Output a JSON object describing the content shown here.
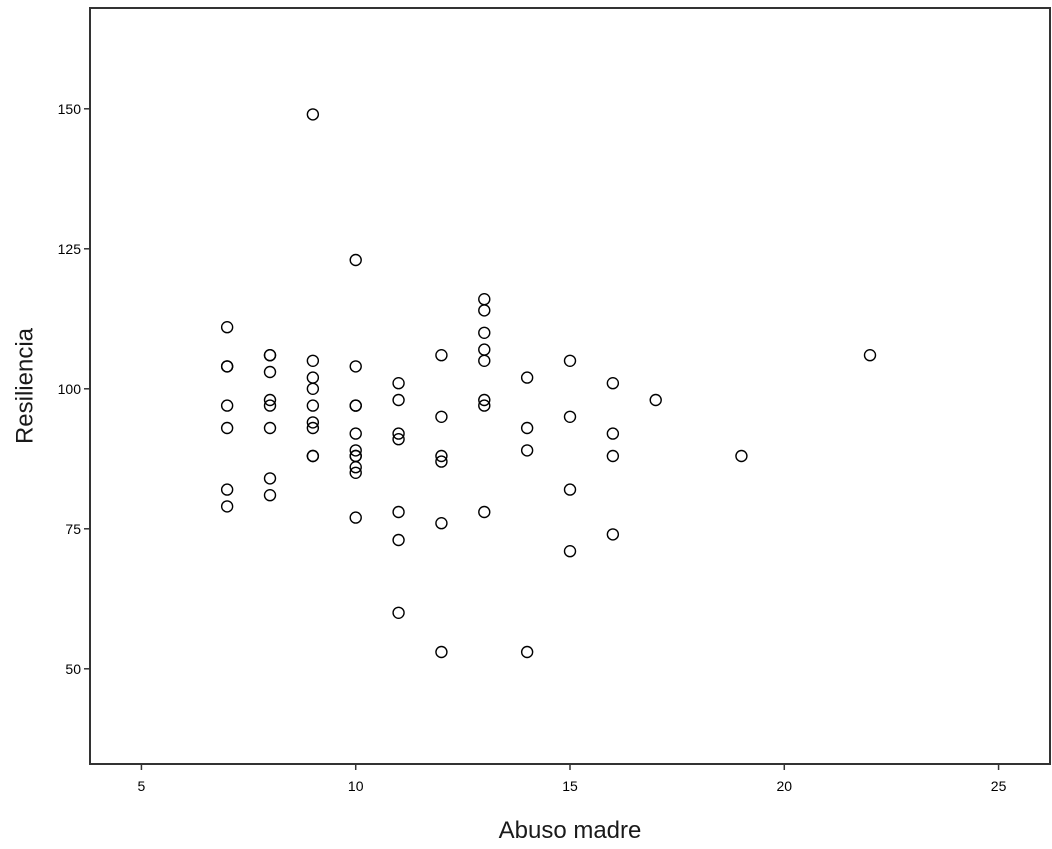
{
  "chart_data": {
    "type": "scatter",
    "title": "",
    "xlabel": "Abuso madre",
    "ylabel": "Resiliencia",
    "xlim": [
      3.8,
      26.2
    ],
    "ylim": [
      33,
      168
    ],
    "x_ticks": [
      5,
      10,
      15,
      20,
      25
    ],
    "y_ticks": [
      50,
      75,
      100,
      125,
      150
    ],
    "grid": false,
    "legend": "none",
    "marker": "open-circle",
    "marker_color": "#000000",
    "frame_color": "#333333",
    "points": [
      {
        "x": 7,
        "y": 111
      },
      {
        "x": 7,
        "y": 104
      },
      {
        "x": 7,
        "y": 104
      },
      {
        "x": 7,
        "y": 97
      },
      {
        "x": 7,
        "y": 93
      },
      {
        "x": 7,
        "y": 82
      },
      {
        "x": 7,
        "y": 79
      },
      {
        "x": 8,
        "y": 106
      },
      {
        "x": 8,
        "y": 106
      },
      {
        "x": 8,
        "y": 103
      },
      {
        "x": 8,
        "y": 98
      },
      {
        "x": 8,
        "y": 97
      },
      {
        "x": 8,
        "y": 93
      },
      {
        "x": 8,
        "y": 84
      },
      {
        "x": 8,
        "y": 81
      },
      {
        "x": 9,
        "y": 149
      },
      {
        "x": 9,
        "y": 105
      },
      {
        "x": 9,
        "y": 102
      },
      {
        "x": 9,
        "y": 100
      },
      {
        "x": 9,
        "y": 97
      },
      {
        "x": 9,
        "y": 94
      },
      {
        "x": 9,
        "y": 93
      },
      {
        "x": 9,
        "y": 88
      },
      {
        "x": 9,
        "y": 88
      },
      {
        "x": 10,
        "y": 123
      },
      {
        "x": 10,
        "y": 104
      },
      {
        "x": 10,
        "y": 97
      },
      {
        "x": 10,
        "y": 97
      },
      {
        "x": 10,
        "y": 92
      },
      {
        "x": 10,
        "y": 89
      },
      {
        "x": 10,
        "y": 88
      },
      {
        "x": 10,
        "y": 88
      },
      {
        "x": 10,
        "y": 86
      },
      {
        "x": 10,
        "y": 85
      },
      {
        "x": 10,
        "y": 77
      },
      {
        "x": 11,
        "y": 101
      },
      {
        "x": 11,
        "y": 98
      },
      {
        "x": 11,
        "y": 92
      },
      {
        "x": 11,
        "y": 91
      },
      {
        "x": 11,
        "y": 78
      },
      {
        "x": 11,
        "y": 73
      },
      {
        "x": 11,
        "y": 60
      },
      {
        "x": 12,
        "y": 106
      },
      {
        "x": 12,
        "y": 95
      },
      {
        "x": 12,
        "y": 88
      },
      {
        "x": 12,
        "y": 87
      },
      {
        "x": 12,
        "y": 76
      },
      {
        "x": 12,
        "y": 53
      },
      {
        "x": 13,
        "y": 116
      },
      {
        "x": 13,
        "y": 114
      },
      {
        "x": 13,
        "y": 110
      },
      {
        "x": 13,
        "y": 107
      },
      {
        "x": 13,
        "y": 105
      },
      {
        "x": 13,
        "y": 98
      },
      {
        "x": 13,
        "y": 97
      },
      {
        "x": 13,
        "y": 78
      },
      {
        "x": 14,
        "y": 102
      },
      {
        "x": 14,
        "y": 93
      },
      {
        "x": 14,
        "y": 89
      },
      {
        "x": 14,
        "y": 53
      },
      {
        "x": 15,
        "y": 105
      },
      {
        "x": 15,
        "y": 95
      },
      {
        "x": 15,
        "y": 82
      },
      {
        "x": 15,
        "y": 71
      },
      {
        "x": 16,
        "y": 101
      },
      {
        "x": 16,
        "y": 92
      },
      {
        "x": 16,
        "y": 88
      },
      {
        "x": 16,
        "y": 74
      },
      {
        "x": 17,
        "y": 98
      },
      {
        "x": 19,
        "y": 88
      },
      {
        "x": 22,
        "y": 106
      }
    ]
  }
}
